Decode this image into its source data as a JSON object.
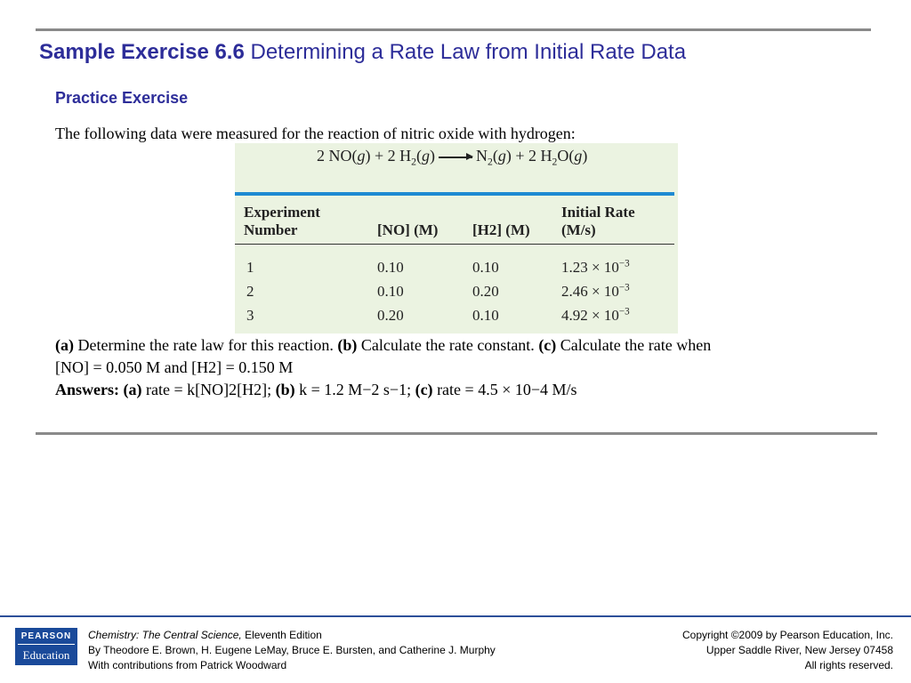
{
  "slide": {
    "title_bold": "Sample Exercise 6.6",
    "title_rest": "Determining a Rate Law from Initial Rate Data",
    "subtitle": "Practice Exercise",
    "intro": "The following data were measured for the reaction of nitric oxide with hydrogen:"
  },
  "figure": {
    "headers": {
      "experiment_line1": "Experiment",
      "experiment_line2": "Number",
      "no": "[NO] (M)",
      "h2": "[H2] (M)",
      "rate_line1": "Initial Rate",
      "rate_line2": "(M/s)"
    },
    "rows": [
      {
        "exp": "1",
        "no": "0.10",
        "h2": "0.10",
        "rate_mant": "1.23 × 10",
        "rate_exp": "−3"
      },
      {
        "exp": "2",
        "no": "0.10",
        "h2": "0.20",
        "rate_mant": "2.46 × 10",
        "rate_exp": "−3"
      },
      {
        "exp": "3",
        "no": "0.20",
        "h2": "0.10",
        "rate_mant": "4.92 × 10",
        "rate_exp": "−3"
      }
    ]
  },
  "questions": {
    "a_label": "(a)",
    "a_text": " Determine the rate law for this reaction. ",
    "b_label": "(b)",
    "b_text": " Calculate the rate constant. ",
    "c_label": "(c)",
    "c_text": " Calculate the rate when",
    "conditions": " [NO] = 0.050 M and [H2] = 0.150 M"
  },
  "answers": {
    "label": "Answers:",
    "a_label": "(a)",
    "a_text": "rate = k[NO]2[H2];",
    "b_label": "(b)",
    "b_text": "k = 1.2 M−2 s−1;",
    "c_label": "(c)",
    "c_text": "rate = 4.5 × 10−4 M/s"
  },
  "footer": {
    "logo_top": "PEARSON",
    "logo_bottom": "Education",
    "book_title": "Chemistry: The Central Science,",
    "edition": " Eleventh Edition",
    "authors": "By Theodore E. Brown, H. Eugene LeMay, Bruce E. Bursten, and Catherine J. Murphy",
    "contributions": "With contributions from Patrick Woodward",
    "copyright": "Copyright ©2009 by Pearson Education, Inc.",
    "address": "Upper Saddle River, New Jersey 07458",
    "rights": "All rights reserved."
  }
}
